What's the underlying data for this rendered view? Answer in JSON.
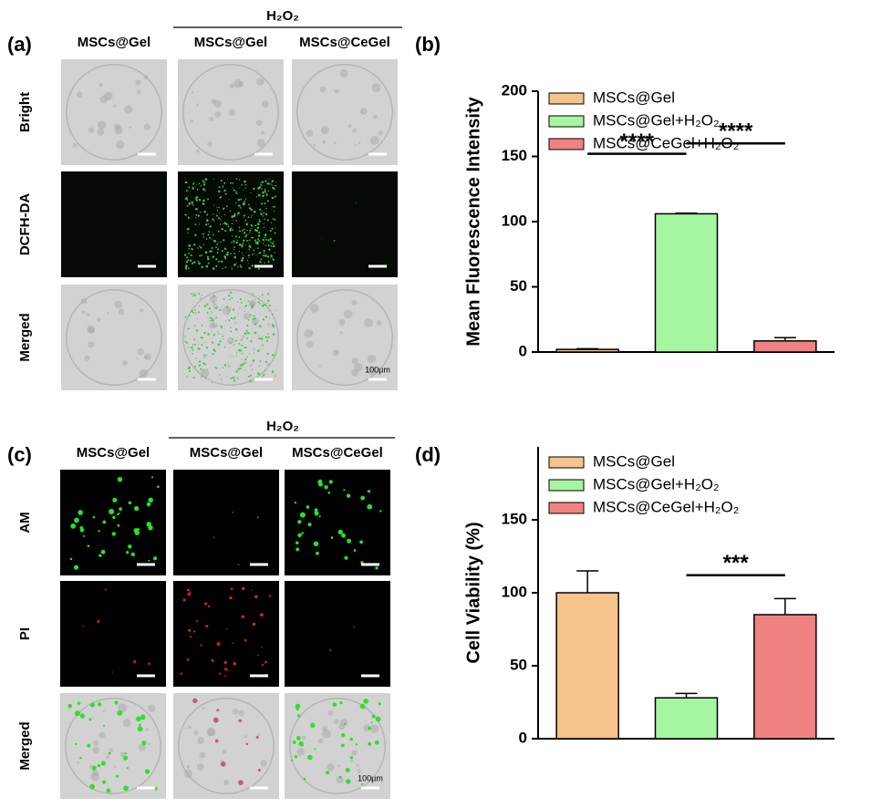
{
  "panel_a": {
    "label": "(a)",
    "group": "H₂O₂",
    "columns": [
      "MSCs@Gel",
      "MSCs@Gel",
      "MSCs@CeGel"
    ],
    "rows": [
      {
        "text": "Bright",
        "color": "#000000"
      },
      {
        "text": "DCFH-DA",
        "color": "#1db53a"
      },
      {
        "text": "Merged",
        "color": "#000000"
      }
    ],
    "scale_bar": "100μm"
  },
  "panel_c": {
    "label": "(c)",
    "group": "H₂O₂",
    "columns": [
      "MSCs@Gel",
      "MSCs@Gel",
      "MSCs@CeGel"
    ],
    "rows": [
      {
        "text": "AM",
        "color": "#1db53a"
      },
      {
        "text": "PI",
        "color": "#e02020"
      },
      {
        "text": "Merged",
        "color": "#000000"
      }
    ],
    "scale_bar": "100μm"
  },
  "chart_data": [
    {
      "label": "(b)",
      "type": "bar",
      "ylabel": "Mean Fluorescence Intensity",
      "ylim": [
        0,
        200
      ],
      "yticks": [
        0,
        50,
        100,
        150,
        200
      ],
      "series": [
        {
          "name": "MSCs@Gel",
          "color": "#f5c48a",
          "values": [
            2
          ],
          "errors": [
            0.5
          ]
        },
        {
          "name": "MSCs@Gel+H₂O₂",
          "color": "#a6f5a0",
          "values": [
            106
          ],
          "errors": [
            0.5
          ]
        },
        {
          "name": "MSCs@CeGel+H₂O₂",
          "color": "#f08282",
          "values": [
            8.5
          ],
          "errors": [
            2.5
          ]
        }
      ],
      "annotations": [
        "****",
        "****"
      ]
    },
    {
      "label": "(d)",
      "type": "bar",
      "ylabel": "Cell Viability (%)",
      "ylim": [
        0,
        200
      ],
      "yticks": [
        0,
        50,
        100,
        150
      ],
      "series": [
        {
          "name": "MSCs@Gel",
          "color": "#f5c48a",
          "values": [
            100
          ],
          "errors": [
            15
          ]
        },
        {
          "name": "MSCs@Gel+H₂O₂",
          "color": "#a6f5a0",
          "values": [
            28
          ],
          "errors": [
            3
          ]
        },
        {
          "name": "MSCs@CeGel+H₂O₂",
          "color": "#f08282",
          "values": [
            85
          ],
          "errors": [
            11
          ]
        }
      ],
      "annotations": [
        "***"
      ]
    }
  ]
}
